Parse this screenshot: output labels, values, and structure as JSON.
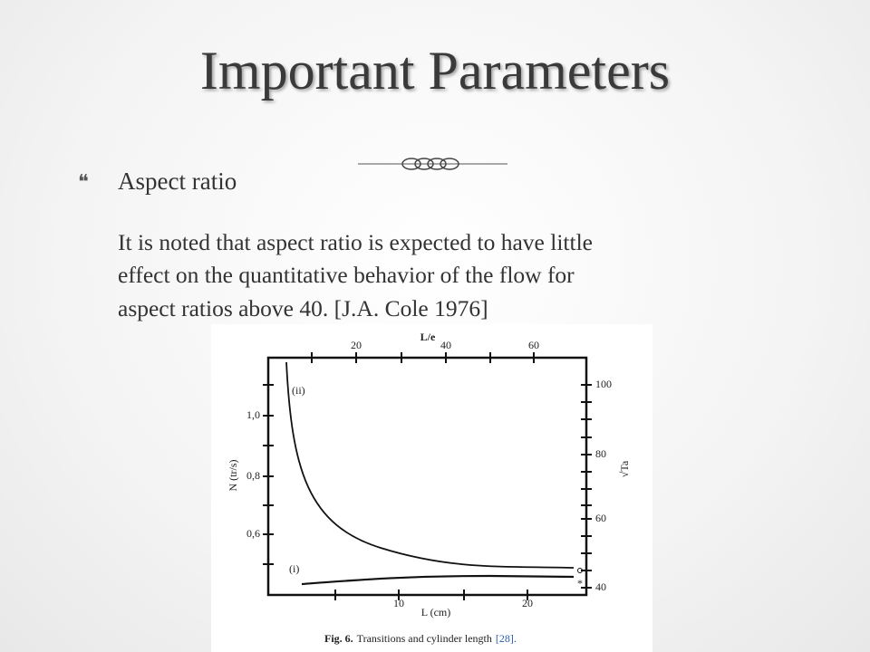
{
  "slide": {
    "title": "Important Parameters",
    "bullet": "Aspect ratio",
    "paragraph": [
      "It is noted that aspect ratio is expected to have little",
      "effect on the quantitative behavior of the flow for",
      "aspect ratios above 40. [J.A. Cole 1976]"
    ]
  },
  "figure": {
    "top_axis": {
      "label": "L/e",
      "ticks": [
        "20",
        "40",
        "60"
      ]
    },
    "bottom_axis": {
      "label": "L (cm)",
      "ticks": [
        "10",
        "20"
      ]
    },
    "left_axis": {
      "label": "N (tr/s)",
      "ticks": [
        "1,0",
        "0,8",
        "0,6"
      ]
    },
    "right_axis": {
      "label": "√Ta",
      "ticks": [
        "100",
        "80",
        "60",
        "40"
      ]
    },
    "curve_labels": [
      "(ii)",
      "(i)"
    ],
    "caption": {
      "label": "Fig. 6.",
      "text": "Transitions and cylinder length",
      "ref": "[28]."
    }
  }
}
